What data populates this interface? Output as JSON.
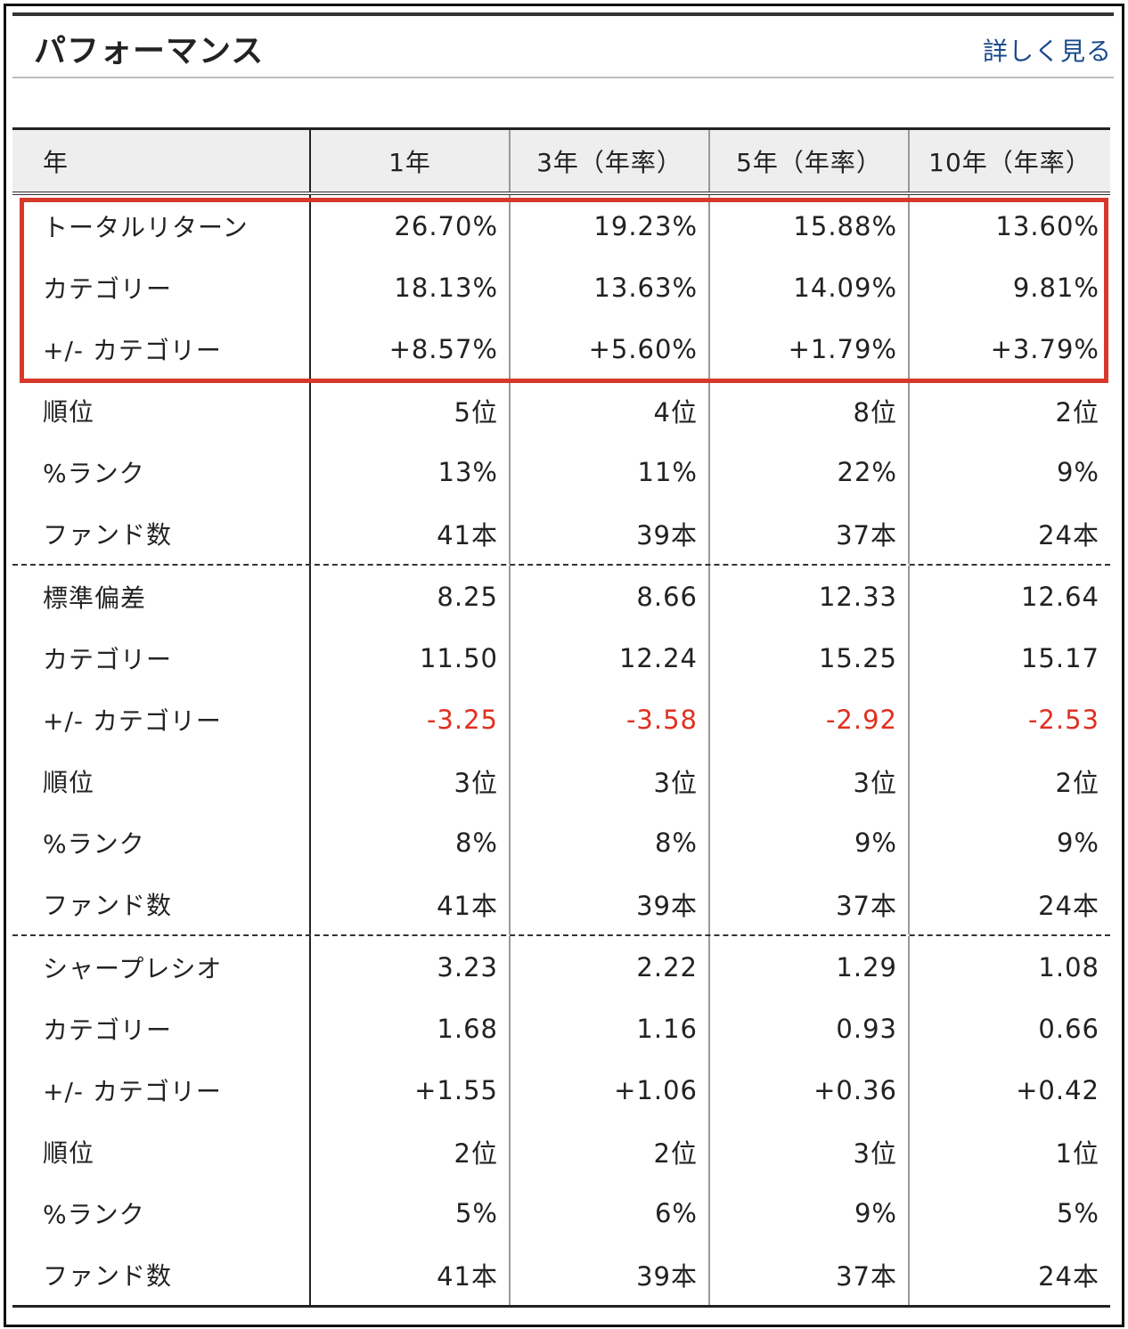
{
  "header": {
    "title": "パフォーマンス",
    "more_link": "詳しく見る"
  },
  "table": {
    "columns": [
      "年",
      "1年",
      "3年（年率）",
      "5年（年率）",
      "10年（年率）"
    ],
    "groups": [
      {
        "rows": [
          {
            "label": "トータルリターン",
            "values": [
              "26.70%",
              "19.23%",
              "15.88%",
              "13.60%"
            ]
          },
          {
            "label": "カテゴリー",
            "values": [
              "18.13%",
              "13.63%",
              "14.09%",
              "9.81%"
            ]
          },
          {
            "label": "+/- カテゴリー",
            "values": [
              "+8.57%",
              "+5.60%",
              "+1.79%",
              "+3.79%"
            ]
          },
          {
            "label": "順位",
            "values": [
              "5位",
              "4位",
              "8位",
              "2位"
            ]
          },
          {
            "label": "%ランク",
            "values": [
              "13%",
              "11%",
              "22%",
              "9%"
            ]
          },
          {
            "label": "ファンド数",
            "values": [
              "41本",
              "39本",
              "37本",
              "24本"
            ]
          }
        ]
      },
      {
        "rows": [
          {
            "label": "標準偏差",
            "values": [
              "8.25",
              "8.66",
              "12.33",
              "12.64"
            ]
          },
          {
            "label": "カテゴリー",
            "values": [
              "11.50",
              "12.24",
              "15.25",
              "15.17"
            ]
          },
          {
            "label": "+/- カテゴリー",
            "values": [
              "-3.25",
              "-3.58",
              "-2.92",
              "-2.53"
            ],
            "negative": true
          },
          {
            "label": "順位",
            "values": [
              "3位",
              "3位",
              "3位",
              "2位"
            ]
          },
          {
            "label": "%ランク",
            "values": [
              "8%",
              "8%",
              "9%",
              "9%"
            ]
          },
          {
            "label": "ファンド数",
            "values": [
              "41本",
              "39本",
              "37本",
              "24本"
            ]
          }
        ]
      },
      {
        "rows": [
          {
            "label": "シャープレシオ",
            "values": [
              "3.23",
              "2.22",
              "1.29",
              "1.08"
            ]
          },
          {
            "label": "カテゴリー",
            "values": [
              "1.68",
              "1.16",
              "0.93",
              "0.66"
            ]
          },
          {
            "label": "+/- カテゴリー",
            "values": [
              "+1.55",
              "+1.06",
              "+0.36",
              "+0.42"
            ]
          },
          {
            "label": "順位",
            "values": [
              "2位",
              "2位",
              "3位",
              "1位"
            ]
          },
          {
            "label": "%ランク",
            "values": [
              "5%",
              "6%",
              "9%",
              "5%"
            ]
          },
          {
            "label": "ファンド数",
            "values": [
              "41本",
              "39本",
              "37本",
              "24本"
            ]
          }
        ]
      }
    ]
  },
  "colors": {
    "negative": "#e03020",
    "highlight": "#d7382a",
    "link": "#1a4a8a",
    "header_bg": "#eeeeee"
  }
}
